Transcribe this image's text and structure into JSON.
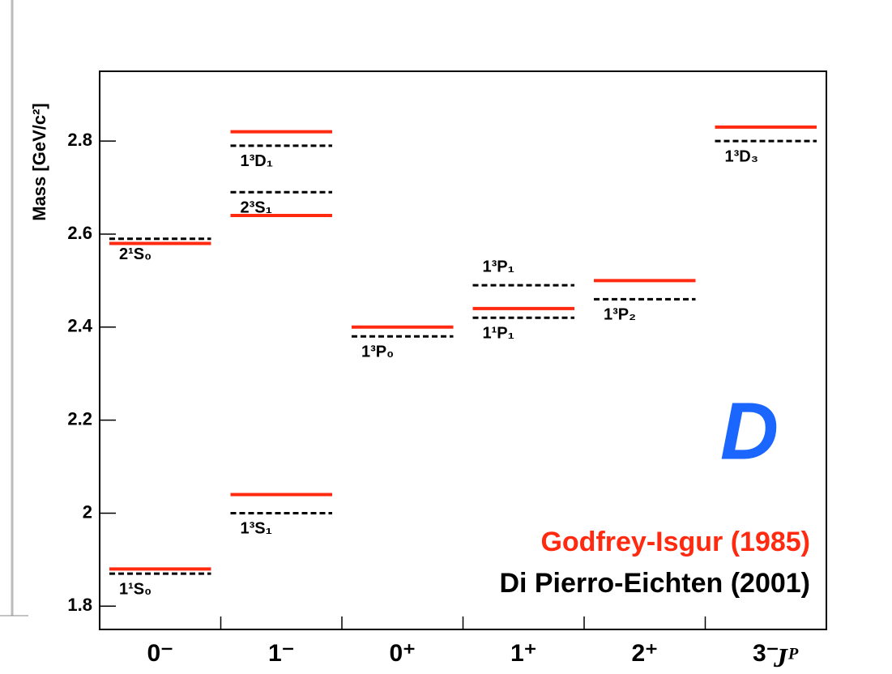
{
  "chart_data": {
    "type": "levels",
    "y_label": "Mass [GeV/c²]",
    "x_label": "Jᴾ",
    "annotation": "D",
    "categories": [
      "0⁻",
      "1⁻",
      "0⁺",
      "1⁺",
      "2⁺",
      "3⁻"
    ],
    "ylim": [
      1.75,
      2.95
    ],
    "yticks": [
      1.8,
      2,
      2.2,
      2.4,
      2.6,
      2.8
    ],
    "legend": "lower right",
    "series": [
      {
        "name": "Godfrey-Isgur (1985)",
        "color": "#ff2a10",
        "dash": false,
        "x": [
          "0⁻",
          "0⁻",
          "1⁻",
          "1⁻",
          "1⁻",
          "0⁺",
          "1⁺",
          "2⁺",
          "3⁻"
        ],
        "values": [
          1.88,
          2.58,
          2.04,
          2.64,
          2.82,
          2.4,
          2.44,
          2.5,
          2.83
        ]
      },
      {
        "name": "Di Pierro-Eichten (2001)",
        "color": "#000000",
        "dash": true,
        "x": [
          "0⁻",
          "0⁻",
          "1⁻",
          "1⁻",
          "1⁻",
          "0⁺",
          "1⁺",
          "1⁺",
          "2⁺",
          "3⁻"
        ],
        "values": [
          1.87,
          2.59,
          2.0,
          2.69,
          2.79,
          2.38,
          2.49,
          2.42,
          2.46,
          2.8
        ],
        "states": [
          "1¹S₀",
          "2¹S₀",
          "1³S₁",
          "2³S₁",
          "1³D₁",
          "1³P₀",
          "1³P₁",
          "1¹P₁",
          "1³P₂",
          "1³D₃"
        ]
      }
    ]
  }
}
